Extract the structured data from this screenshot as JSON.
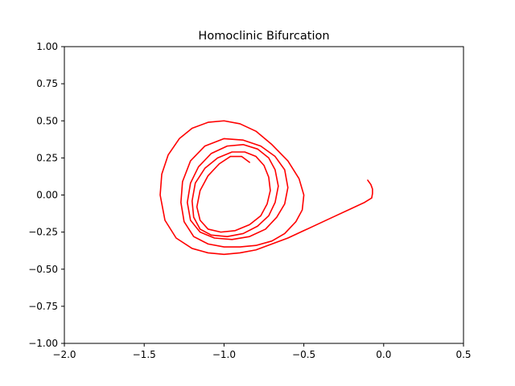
{
  "chart_data": {
    "type": "line",
    "title": "Homoclinic Bifurcation",
    "xlabel": "",
    "ylabel": "",
    "xlim": [
      -2.0,
      0.5
    ],
    "ylim": [
      -1.0,
      1.0
    ],
    "xticks": [
      -2.0,
      -1.5,
      -1.0,
      -0.5,
      0.0,
      0.5
    ],
    "xtick_labels": [
      "−2.0",
      "−1.5",
      "−1.0",
      "−0.5",
      "0.0",
      "0.5"
    ],
    "yticks": [
      -1.0,
      -0.75,
      -0.5,
      -0.25,
      0.0,
      0.25,
      0.5,
      0.75,
      1.0
    ],
    "ytick_labels": [
      "−1.00",
      "−0.75",
      "−0.50",
      "−0.25",
      "0.00",
      "0.25",
      "0.50",
      "0.75",
      "1.00"
    ],
    "grid": false,
    "legend": "none",
    "series": [
      {
        "color": "#ff0000",
        "x": [
          -0.1,
          -0.08,
          -0.07,
          -0.07,
          -0.075,
          -0.12,
          -0.2,
          -0.3,
          -0.4,
          -0.5,
          -0.6,
          -0.7,
          -0.8,
          -0.9,
          -1.0,
          -1.1,
          -1.2,
          -1.3,
          -1.37,
          -1.4,
          -1.39,
          -1.35,
          -1.28,
          -1.2,
          -1.1,
          -1.0,
          -0.9,
          -0.8,
          -0.7,
          -0.6,
          -0.53,
          -0.5,
          -0.51,
          -0.55,
          -0.62,
          -0.7,
          -0.8,
          -0.9,
          -1.0,
          -1.1,
          -1.19,
          -1.25,
          -1.27,
          -1.26,
          -1.21,
          -1.12,
          -1.0,
          -0.88,
          -0.77,
          -0.68,
          -0.62,
          -0.6,
          -0.62,
          -0.67,
          -0.74,
          -0.84,
          -0.95,
          -1.06,
          -1.15,
          -1.21,
          -1.23,
          -1.21,
          -1.16,
          -1.08,
          -0.98,
          -0.88,
          -0.79,
          -0.72,
          -0.68,
          -0.66,
          -0.68,
          -0.72,
          -0.79,
          -0.88,
          -0.98,
          -1.08,
          -1.15,
          -1.19,
          -1.2,
          -1.18,
          -1.12,
          -1.04,
          -0.95,
          -0.87,
          -0.8,
          -0.75,
          -0.72,
          -0.71,
          -0.73,
          -0.77,
          -0.84,
          -0.93,
          -1.02,
          -1.1,
          -1.15,
          -1.17,
          -1.15,
          -1.1,
          -1.03,
          -0.96,
          -0.89,
          -0.84
        ],
        "y": [
          0.1,
          0.07,
          0.04,
          0.01,
          -0.02,
          -0.05,
          -0.09,
          -0.14,
          -0.19,
          -0.24,
          -0.29,
          -0.33,
          -0.37,
          -0.39,
          -0.4,
          -0.39,
          -0.36,
          -0.29,
          -0.17,
          0.0,
          0.14,
          0.27,
          0.38,
          0.45,
          0.49,
          0.5,
          0.48,
          0.43,
          0.34,
          0.23,
          0.11,
          0.0,
          -0.1,
          -0.18,
          -0.26,
          -0.31,
          -0.34,
          -0.35,
          -0.35,
          -0.33,
          -0.28,
          -0.18,
          -0.05,
          0.09,
          0.23,
          0.33,
          0.38,
          0.37,
          0.33,
          0.26,
          0.17,
          0.05,
          -0.06,
          -0.15,
          -0.23,
          -0.28,
          -0.3,
          -0.29,
          -0.25,
          -0.17,
          -0.05,
          0.08,
          0.19,
          0.28,
          0.33,
          0.34,
          0.31,
          0.25,
          0.17,
          0.06,
          -0.05,
          -0.14,
          -0.21,
          -0.26,
          -0.28,
          -0.27,
          -0.23,
          -0.15,
          -0.04,
          0.08,
          0.18,
          0.25,
          0.29,
          0.29,
          0.26,
          0.2,
          0.12,
          0.03,
          -0.06,
          -0.14,
          -0.2,
          -0.24,
          -0.25,
          -0.23,
          -0.17,
          -0.08,
          0.03,
          0.13,
          0.21,
          0.26,
          0.26,
          0.22
        ]
      }
    ]
  }
}
